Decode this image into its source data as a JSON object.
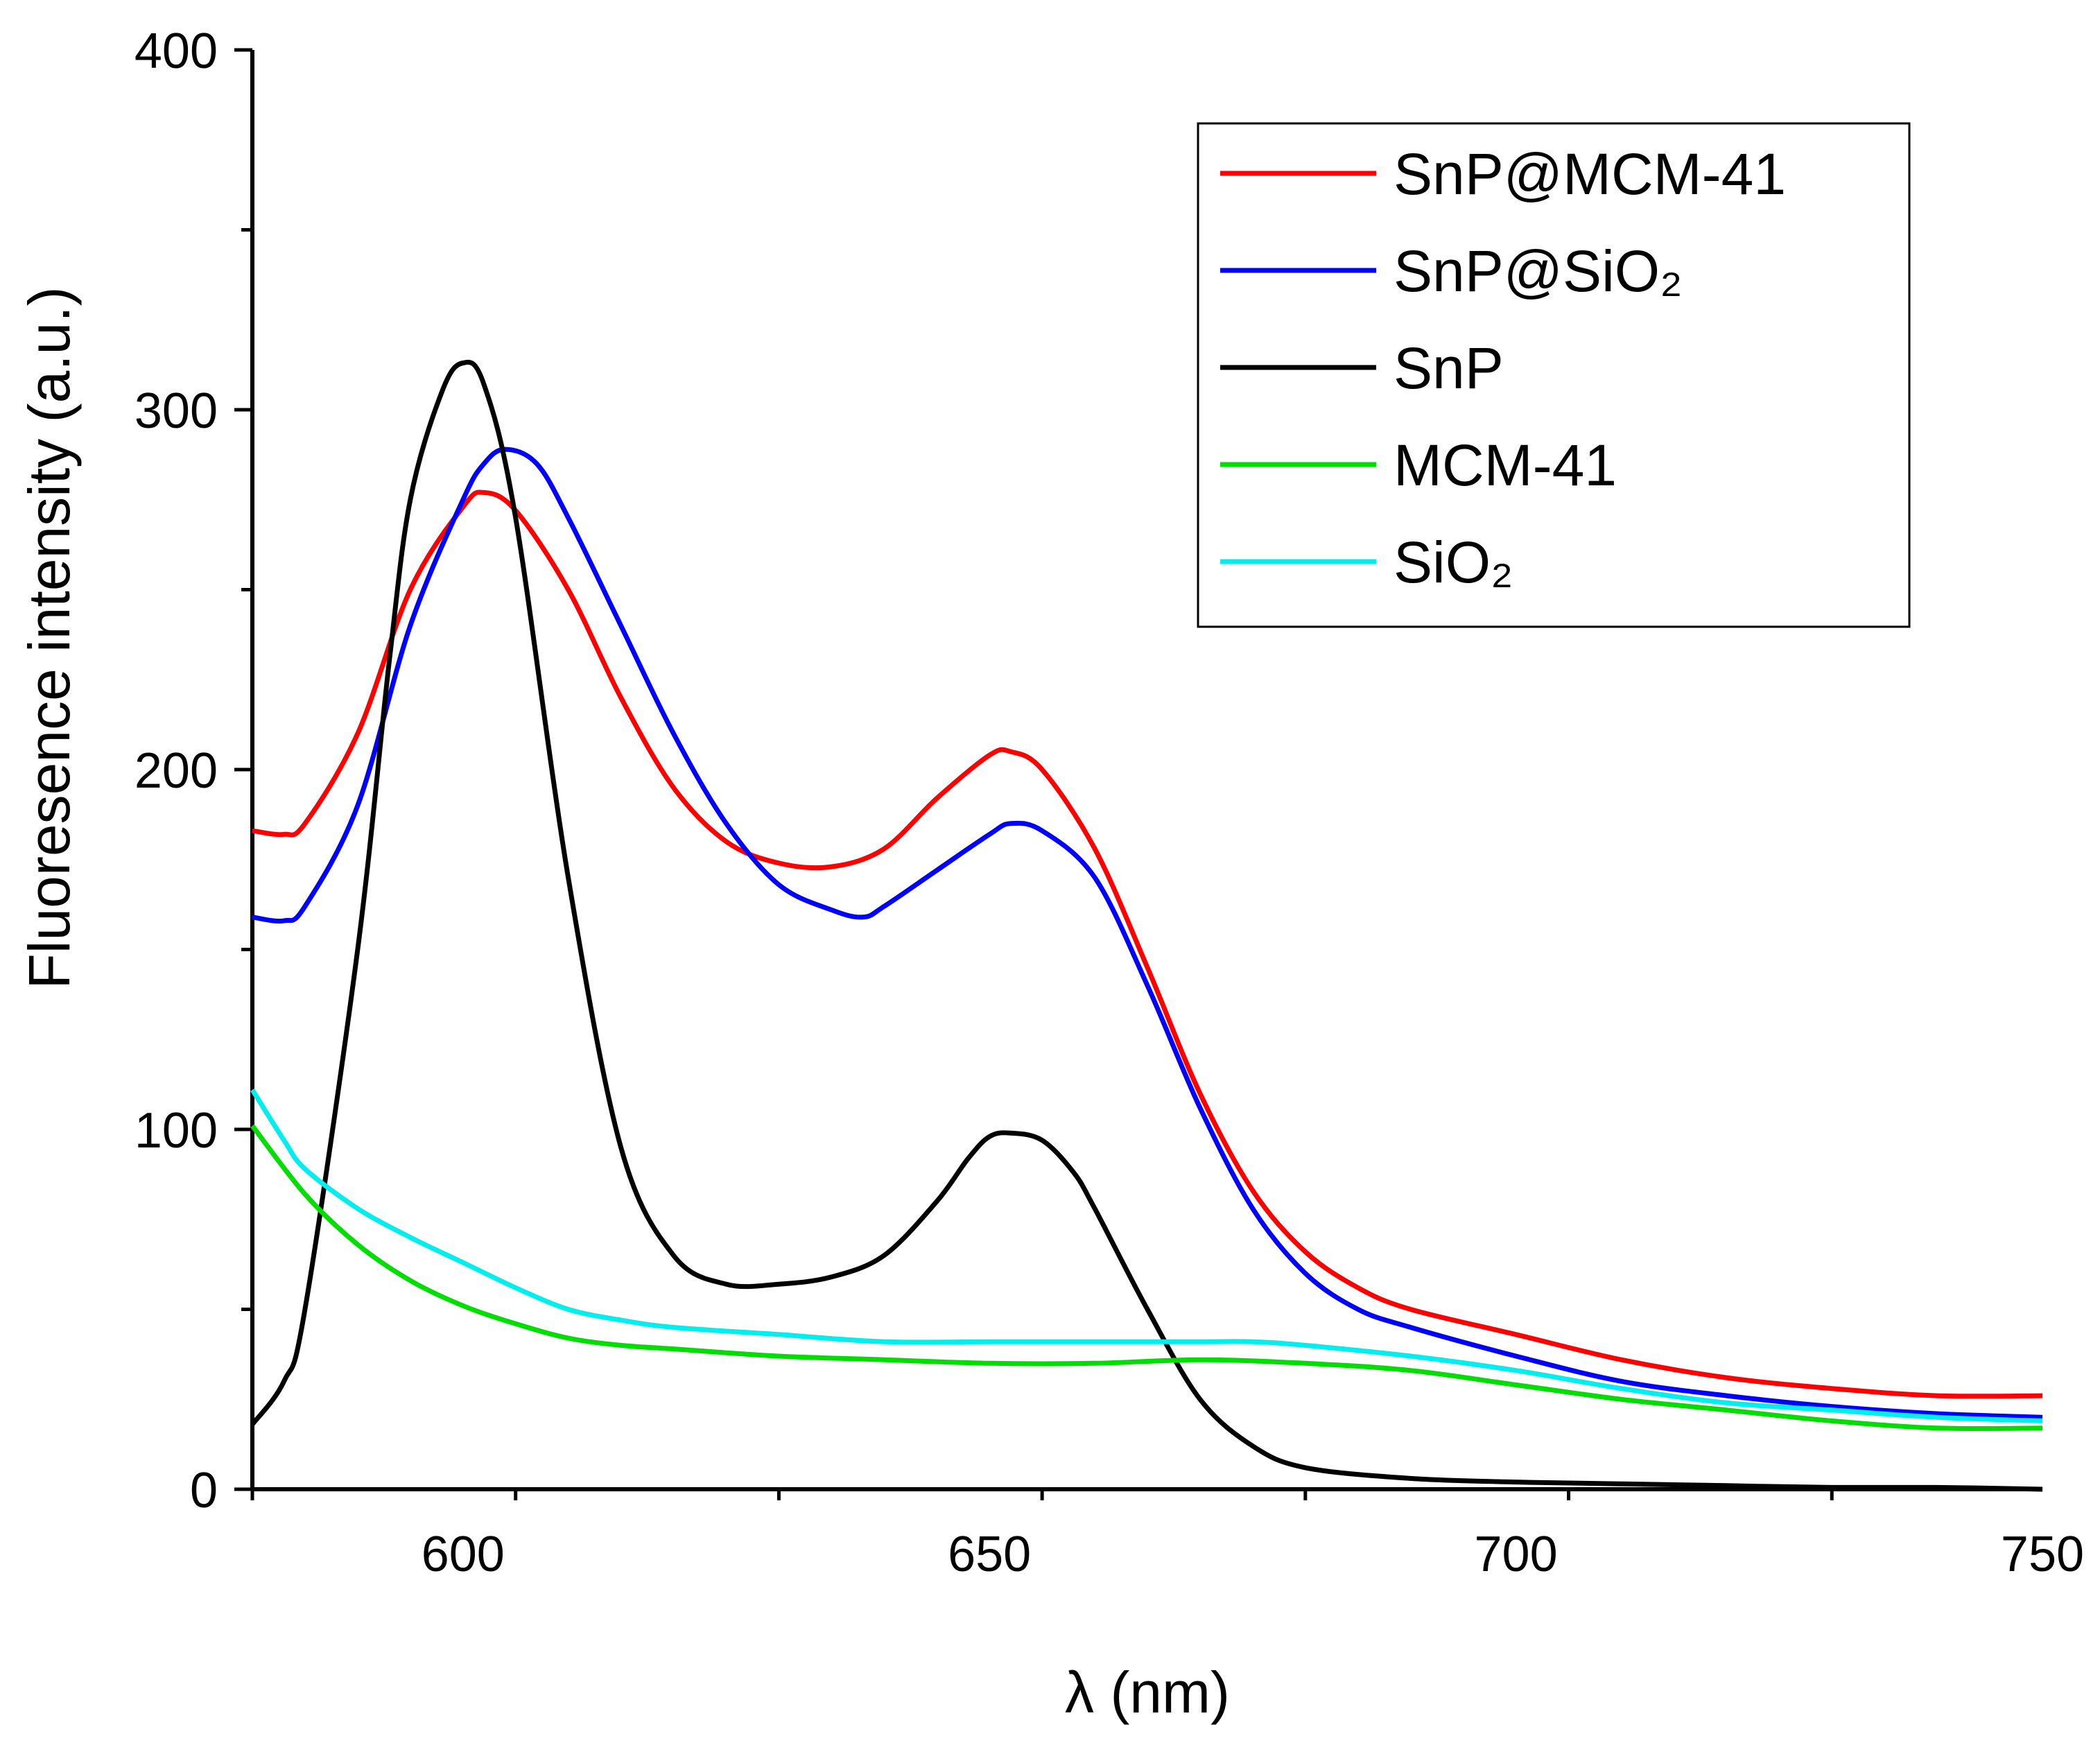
{
  "chart_data": {
    "type": "line",
    "title": "",
    "xlabel": "λ (nm)",
    "ylabel": "Fluoresence intensity (a.u.)",
    "xlim": [
      580,
      750
    ],
    "ylim": [
      0,
      400
    ],
    "xticks": [
      600,
      650,
      700,
      750
    ],
    "yticks": [
      0,
      100,
      200,
      300,
      400
    ],
    "legend_position": "top-right",
    "series": [
      {
        "name": "SnP@MCM-41",
        "color": "#ff0000",
        "x": [
          580,
          583,
          585,
          590,
          595,
          600,
          602,
          605,
          610,
          615,
          620,
          625,
          630,
          635,
          640,
          645,
          650,
          652,
          655,
          660,
          665,
          670,
          675,
          680,
          685,
          690,
          700,
          710,
          720,
          730,
          740,
          750
        ],
        "y": [
          183,
          182,
          185,
          210,
          250,
          273,
          277,
          272,
          250,
          220,
          195,
          180,
          174,
          173,
          178,
          192,
          204,
          205,
          200,
          178,
          145,
          110,
          83,
          66,
          56,
          50,
          43,
          36,
          31,
          28,
          26,
          26
        ]
      },
      {
        "name": "SnP@SiO₂",
        "color": "#0000ff",
        "x": [
          580,
          583,
          585,
          590,
          595,
          600,
          602,
          604,
          607,
          610,
          615,
          620,
          625,
          630,
          635,
          638,
          640,
          645,
          650,
          652,
          655,
          660,
          665,
          670,
          675,
          680,
          685,
          690,
          700,
          710,
          720,
          730,
          740,
          750
        ],
        "y": [
          159,
          158,
          162,
          190,
          240,
          275,
          285,
          289,
          285,
          270,
          240,
          210,
          185,
          168,
          161,
          159,
          162,
          172,
          182,
          185,
          183,
          170,
          140,
          106,
          78,
          60,
          50,
          45,
          37,
          30,
          26,
          23,
          21,
          20
        ]
      },
      {
        "name": "SnP",
        "color": "#000000",
        "x": [
          580,
          583,
          585,
          590,
          593,
          595,
          598,
          600,
          602,
          605,
          610,
          615,
          620,
          625,
          630,
          635,
          640,
          645,
          648,
          650,
          652,
          655,
          658,
          660,
          665,
          670,
          675,
          680,
          690,
          700,
          710,
          720,
          730,
          740,
          750
        ],
        "y": [
          18,
          30,
          50,
          150,
          230,
          275,
          305,
          313,
          307,
          270,
          170,
          95,
          65,
          57,
          57,
          59,
          65,
          80,
          92,
          98,
          99,
          97,
          88,
          78,
          50,
          25,
          12,
          6,
          3,
          2,
          1.5,
          1,
          0.5,
          0.5,
          0
        ]
      },
      {
        "name": "MCM-41",
        "color": "#00dd00",
        "x": [
          580,
          585,
          590,
          595,
          600,
          605,
          610,
          615,
          620,
          630,
          640,
          650,
          660,
          670,
          680,
          690,
          700,
          710,
          720,
          730,
          740,
          750
        ],
        "y": [
          101,
          82,
          68,
          58,
          51,
          46,
          42,
          40,
          39,
          37,
          36,
          35,
          35,
          36,
          35,
          33,
          29,
          25,
          22,
          19,
          17,
          17
        ]
      },
      {
        "name": "SiO₂",
        "color": "#00eeee",
        "x": [
          580,
          583,
          585,
          590,
          595,
          600,
          605,
          610,
          615,
          620,
          630,
          640,
          650,
          660,
          670,
          675,
          680,
          690,
          700,
          710,
          720,
          730,
          740,
          750
        ],
        "y": [
          111,
          97,
          89,
          78,
          70,
          63,
          56,
          50,
          47,
          45,
          43,
          41,
          41,
          41,
          41,
          41,
          40,
          37,
          33,
          28,
          24,
          22,
          20,
          19
        ]
      }
    ]
  }
}
